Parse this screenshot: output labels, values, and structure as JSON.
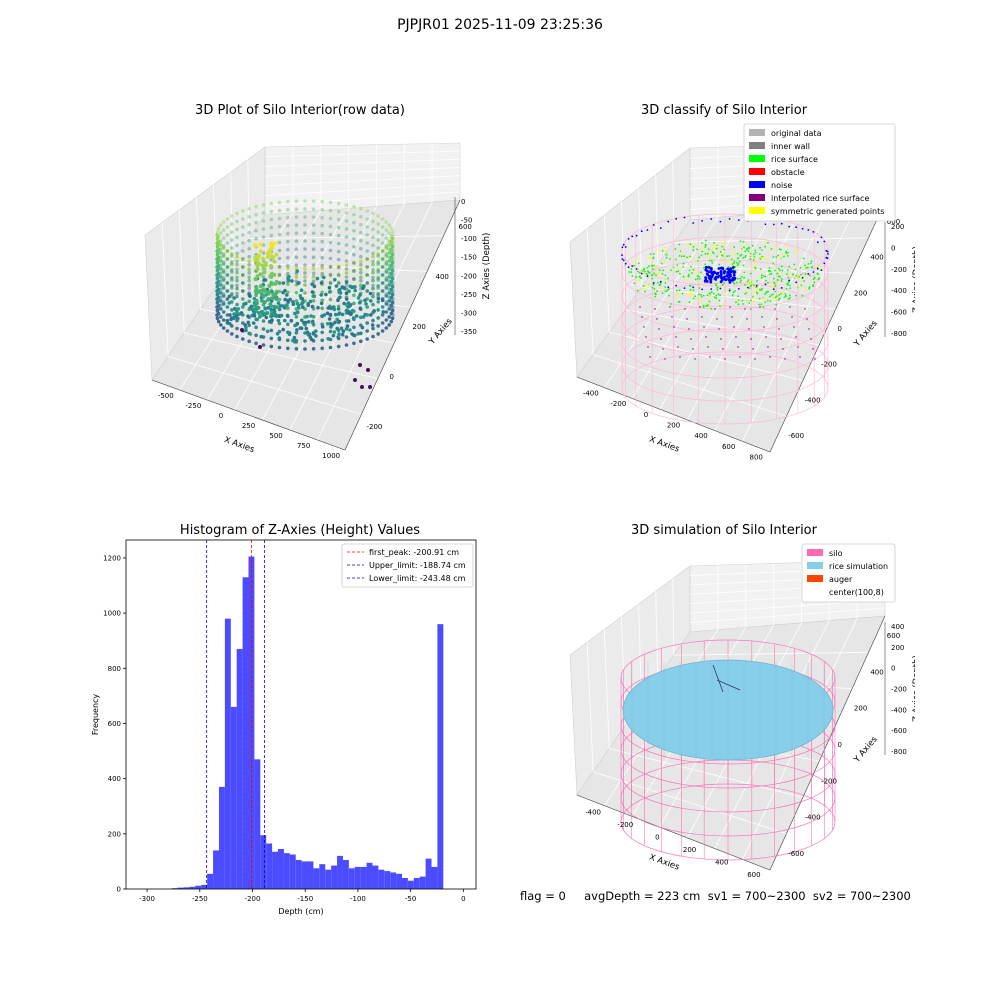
{
  "figure_title": "PJPJR01 2025-11-09 23:25:36",
  "colors": {
    "hist_bar": "#4b4bff",
    "peak_line": "#ff0000",
    "limit_line": "#0000cc",
    "silo": "#ff69b4",
    "rice_simulation": "#87ceeb",
    "auger": "#ff4500",
    "original_data": "#b3b3b3",
    "inner_wall": "#808080",
    "rice_surface": "#00ff00",
    "obstacle": "#ff0000",
    "noise": "#0000ff",
    "interpolated_rice_surface": "#800080",
    "symmetric_generated_points": "#ffff00"
  },
  "chart_data": [
    {
      "type": "scatter",
      "subtype": "3d",
      "title": "3D Plot of Silo Interior(row data)",
      "xlabel": "X Axies",
      "ylabel": "Y Axies",
      "zlabel": "Z Axies (Depth)",
      "x_ticks": [
        "-500",
        "-250",
        "0",
        "250",
        "500",
        "750",
        "1000"
      ],
      "y_ticks": [
        "-200",
        "0",
        "200",
        "400",
        "600"
      ],
      "z_ticks": [
        "0",
        "-50",
        "-100",
        "-150",
        "-200",
        "-250",
        "-300",
        "-350"
      ],
      "colormap": "viridis"
    },
    {
      "type": "scatter",
      "subtype": "3d",
      "title": "3D classify of Silo Interior",
      "xlabel": "X Axies",
      "ylabel": "Y Axies",
      "zlabel": "Z Axies (Depth)",
      "x_ticks": [
        "-400",
        "-200",
        "0",
        "200",
        "400",
        "600",
        "800"
      ],
      "y_ticks": [
        "-600",
        "-400",
        "-200",
        "0",
        "200",
        "400",
        "600"
      ],
      "z_ticks": [
        "200",
        "0",
        "-200",
        "-400",
        "-600",
        "-800"
      ],
      "legend": [
        {
          "label": "original data",
          "color": "#b3b3b3"
        },
        {
          "label": "inner wall",
          "color": "#808080"
        },
        {
          "label": "rice surface",
          "color": "#00ff00"
        },
        {
          "label": "obstacle",
          "color": "#ff0000"
        },
        {
          "label": "noise",
          "color": "#0000ff"
        },
        {
          "label": "interpolated rice surface",
          "color": "#800080"
        },
        {
          "label": "symmetric generated points",
          "color": "#ffff00"
        }
      ],
      "legend_position": "top-right"
    },
    {
      "type": "bar",
      "subtype": "histogram",
      "title": "Histogram of Z-Axies (Height) Values",
      "xlabel": "Depth (cm)",
      "ylabel": "Frequency",
      "xlim": [
        -320,
        12
      ],
      "ylim": [
        0,
        1265
      ],
      "x_ticks": [
        -300,
        -250,
        -200,
        -150,
        -100,
        -50,
        0
      ],
      "y_ticks": [
        0,
        200,
        400,
        600,
        800,
        1000,
        1200
      ],
      "bin_width": 5.6,
      "bins": [
        {
          "x": -276.6,
          "count": 3
        },
        {
          "x": -271.0,
          "count": 5
        },
        {
          "x": -265.4,
          "count": 6
        },
        {
          "x": -259.8,
          "count": 8
        },
        {
          "x": -254.2,
          "count": 12
        },
        {
          "x": -248.6,
          "count": 15
        },
        {
          "x": -243.0,
          "count": 55
        },
        {
          "x": -237.4,
          "count": 140
        },
        {
          "x": -231.8,
          "count": 370
        },
        {
          "x": -226.2,
          "count": 980
        },
        {
          "x": -220.6,
          "count": 660
        },
        {
          "x": -215.0,
          "count": 870
        },
        {
          "x": -209.4,
          "count": 1130
        },
        {
          "x": -203.8,
          "count": 1205
        },
        {
          "x": -198.2,
          "count": 470
        },
        {
          "x": -192.6,
          "count": 195
        },
        {
          "x": -187.0,
          "count": 165
        },
        {
          "x": -181.4,
          "count": 135
        },
        {
          "x": -175.8,
          "count": 145
        },
        {
          "x": -170.2,
          "count": 130
        },
        {
          "x": -164.6,
          "count": 125
        },
        {
          "x": -159.0,
          "count": 105
        },
        {
          "x": -153.4,
          "count": 100
        },
        {
          "x": -147.8,
          "count": 100
        },
        {
          "x": -142.2,
          "count": 75
        },
        {
          "x": -136.6,
          "count": 90
        },
        {
          "x": -131.0,
          "count": 70
        },
        {
          "x": -125.4,
          "count": 85
        },
        {
          "x": -119.8,
          "count": 120
        },
        {
          "x": -114.2,
          "count": 105
        },
        {
          "x": -108.6,
          "count": 75
        },
        {
          "x": -103.0,
          "count": 80
        },
        {
          "x": -97.4,
          "count": 80
        },
        {
          "x": -91.8,
          "count": 95
        },
        {
          "x": -86.2,
          "count": 85
        },
        {
          "x": -80.6,
          "count": 70
        },
        {
          "x": -75.0,
          "count": 65
        },
        {
          "x": -69.4,
          "count": 60
        },
        {
          "x": -63.8,
          "count": 55
        },
        {
          "x": -58.2,
          "count": 40
        },
        {
          "x": -52.6,
          "count": 30
        },
        {
          "x": -47.0,
          "count": 40
        },
        {
          "x": -41.4,
          "count": 45
        },
        {
          "x": -35.8,
          "count": 110
        },
        {
          "x": -30.2,
          "count": 80
        },
        {
          "x": -24.6,
          "count": 960
        },
        {
          "x": -19.0,
          "count": 0
        }
      ],
      "vlines": [
        {
          "label": "first_peak: -200.91 cm",
          "x": -200.91,
          "color": "#ff0000"
        },
        {
          "label": "Upper_limit: -188.74 cm",
          "x": -188.74,
          "color": "#0000cc"
        },
        {
          "label": "Lower_limit: -243.48 cm",
          "x": -243.48,
          "color": "#0000cc"
        }
      ],
      "legend_position": "top-right"
    },
    {
      "type": "scatter",
      "subtype": "3d",
      "title": "3D simulation of Silo Interior",
      "xlabel": "X Axies",
      "ylabel": "Y Axies",
      "zlabel": "Z Axies (Depth)",
      "x_ticks": [
        "-400",
        "-200",
        "0",
        "200",
        "400",
        "600"
      ],
      "y_ticks": [
        "-600",
        "-400",
        "-200",
        "0",
        "200",
        "400",
        "600"
      ],
      "z_ticks": [
        "400",
        "200",
        "0",
        "-200",
        "-400",
        "-600",
        "-800"
      ],
      "legend": [
        {
          "label": "silo",
          "color": "#ff69b4"
        },
        {
          "label": "rice simulation",
          "color": "#87ceeb"
        },
        {
          "label": "auger",
          "color": "#ff4500"
        },
        {
          "label": "center(100,8)",
          "color": ""
        }
      ],
      "legend_position": "top-right"
    }
  ],
  "footer": "flag = 0     avgDepth = 223 cm  sv1 = 700~2300  sv2 = 700~2300"
}
